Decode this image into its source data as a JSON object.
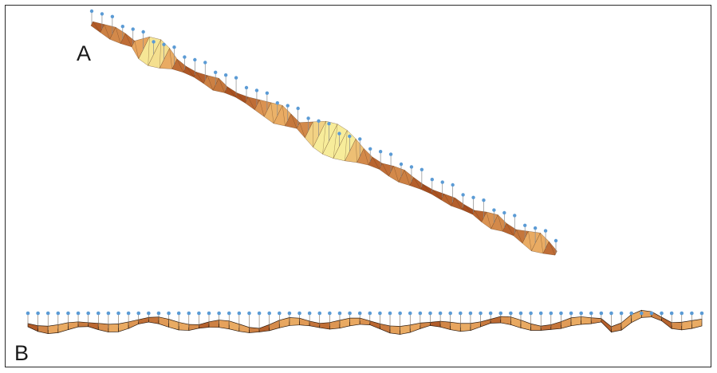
{
  "panels": [
    {
      "label": "A"
    },
    {
      "label": "B"
    }
  ],
  "colors": {
    "vertex_marker": "#5b9bd5",
    "stem": "#8a8a8a",
    "ribbon_light": "#f7ec9a",
    "ribbon_mid": "#e8a55e",
    "ribbon_dark": "#9c3f14",
    "outline": "#5a3418"
  }
}
